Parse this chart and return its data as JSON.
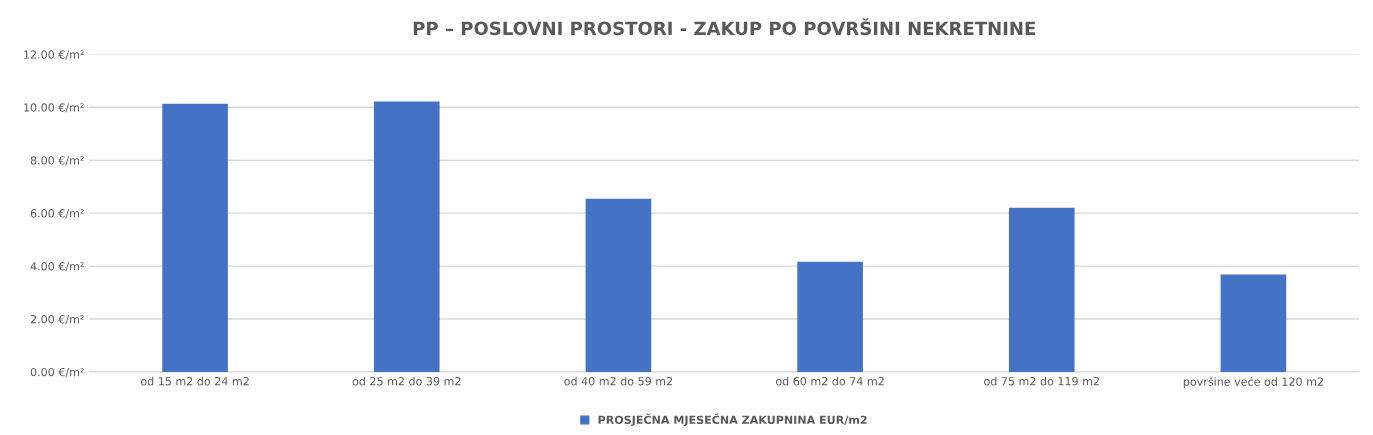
{
  "chart_data": {
    "type": "bar",
    "title": "PP – POSLOVNI PROSTORI - ZAKUP PO POVRŠINI NEKRETNINE",
    "categories": [
      "od 15 m2 do 24 m2",
      "od 25 m2 do 39 m2",
      "od 40 m2 do 59 m2",
      "od 60 m2 do 74 m2",
      "od 75 m2 do 119 m2",
      "površine veće od 120 m2"
    ],
    "series": [
      {
        "name": "PROSJEČNA MJESEČNA ZAKUPNINA EUR/m2",
        "color": "#4472c4",
        "values": [
          10.13,
          10.22,
          6.54,
          4.16,
          6.2,
          3.68
        ]
      }
    ],
    "ylim": [
      0,
      12
    ],
    "yticks": [
      {
        "value": 0,
        "label": "0.00 €/m²"
      },
      {
        "value": 2,
        "label": "2.00 €/m²"
      },
      {
        "value": 4,
        "label": "4.00 €/m²"
      },
      {
        "value": 6,
        "label": "6.00 €/m²"
      },
      {
        "value": 8,
        "label": "8.00 €/m²"
      },
      {
        "value": 10,
        "label": "10.00 €/m²"
      },
      {
        "value": 12,
        "label": "12.00 €/m²"
      }
    ],
    "grid": "y",
    "legend": "bottom"
  }
}
